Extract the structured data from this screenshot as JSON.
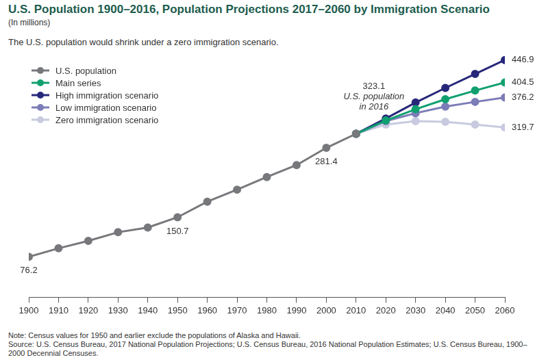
{
  "chart_data": {
    "type": "line",
    "title": "U.S. Population 1900–2016, Population Projections 2017–2060 by Immigration Scenario",
    "subtitle": "(In millions)",
    "annotation_text": "The U.S. population would shrink under a zero immigration scenario.",
    "notes": [
      "Note: Census values for 1950 and earlier exclude the populations of Alaska and Hawaii.",
      "Source: U.S. Census Bureau, 2017 National Population Projections; U.S. Census Bureau, 2016 National Population Estimates; U.S. Census Bureau, 1900–2000 Decennial Censuses."
    ],
    "x": [
      1900,
      1910,
      1920,
      1930,
      1940,
      1950,
      1960,
      1970,
      1980,
      1990,
      2000,
      2010,
      2020,
      2030,
      2040,
      2050,
      2060
    ],
    "xlim": [
      1900,
      2060
    ],
    "xticks": [
      1900,
      1910,
      1920,
      1930,
      1940,
      1950,
      1960,
      1970,
      1980,
      1990,
      2000,
      2010,
      2020,
      2030,
      2040,
      2050,
      2060
    ],
    "ylim": [
      0,
      460
    ],
    "tick_labels": "x",
    "grid": false,
    "legend": "upper left",
    "marker": "circle",
    "series": [
      {
        "name": "U.S. population",
        "color": "#77787b",
        "values": [
          76.2,
          92.2,
          106.2,
          122.5,
          131.3,
          150.7,
          180.1,
          202.7,
          226.5,
          249.0,
          281.4,
          307.9,
          null,
          null,
          null,
          null,
          null
        ]
      },
      {
        "name": "Main series",
        "color": "#10a070",
        "values": [
          null,
          null,
          null,
          null,
          null,
          null,
          null,
          null,
          null,
          null,
          null,
          307.9,
          332.9,
          354.2,
          373.0,
          389.3,
          404.5
        ]
      },
      {
        "name": "High immigration scenario",
        "color": "#27277a",
        "values": [
          null,
          null,
          null,
          null,
          null,
          null,
          null,
          null,
          null,
          null,
          null,
          307.9,
          336.7,
          366.8,
          394.3,
          420.6,
          446.9
        ]
      },
      {
        "name": "Low immigration scenario",
        "color": "#7c7cb8",
        "values": [
          null,
          null,
          null,
          null,
          null,
          null,
          null,
          null,
          null,
          null,
          null,
          307.9,
          331.7,
          346.7,
          359.2,
          368.0,
          376.2
        ]
      },
      {
        "name": "Zero immigration scenario",
        "color": "#c8cadf",
        "values": [
          null,
          null,
          null,
          null,
          null,
          null,
          null,
          null,
          null,
          null,
          null,
          307.9,
          325.4,
          331.7,
          330.4,
          325.4,
          319.7
        ]
      }
    ],
    "annotations": [
      {
        "text": "76.2",
        "x": 1900,
        "y": 76.2
      },
      {
        "text": "150.7",
        "x": 1950,
        "y": 150.7
      },
      {
        "text": "281.4",
        "x": 2000,
        "y": 281.4
      },
      {
        "text": [
          "323.1",
          "U.S. population",
          "in 2016"
        ],
        "x": 2016,
        "y": 323.1
      },
      {
        "text": "446.9",
        "x": 2060,
        "y": 446.9
      },
      {
        "text": "404.5",
        "x": 2060,
        "y": 404.5
      },
      {
        "text": "376.2",
        "x": 2060,
        "y": 376.2
      },
      {
        "text": "319.7",
        "x": 2060,
        "y": 319.7
      }
    ]
  }
}
